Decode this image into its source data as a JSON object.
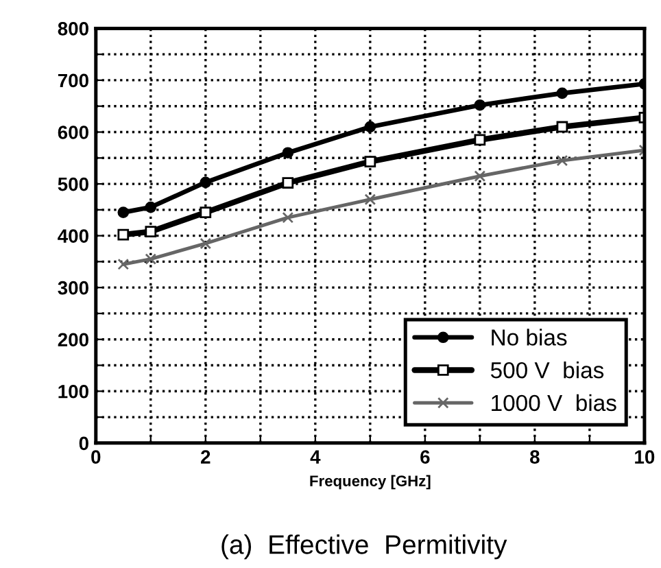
{
  "chart_data": {
    "type": "line",
    "title": "(a)  Effective  Permitivity",
    "xlabel": "Frequency [GHz]",
    "xlim": [
      0,
      10
    ],
    "ylim": [
      0,
      800
    ],
    "xticks": [
      0,
      {
        "value": 1,
        "label": null
      },
      2,
      {
        "value": 3,
        "label": null
      },
      4,
      {
        "value": 5,
        "label": null
      },
      6,
      {
        "value": 7,
        "label": null
      },
      8,
      {
        "value": 9,
        "label": null
      },
      10
    ],
    "yticks": [
      0,
      {
        "value": 50,
        "label": null
      },
      100,
      {
        "value": 150,
        "label": null
      },
      200,
      {
        "value": 250,
        "label": null
      },
      300,
      {
        "value": 350,
        "label": null
      },
      400,
      {
        "value": 450,
        "label": null
      },
      500,
      {
        "value": 550,
        "label": null
      },
      600,
      {
        "value": 650,
        "label": null
      },
      700,
      {
        "value": 750,
        "label": null
      },
      800
    ],
    "grid": true,
    "legend": "bottom right",
    "line_style": "solid",
    "series": [
      {
        "name": "No bias",
        "color": "#000000",
        "marker": "circle",
        "x": [
          0.5,
          1,
          2,
          3.5,
          5,
          7,
          8.5,
          10
        ],
        "values": [
          445,
          455,
          503,
          560,
          610,
          652,
          675,
          693
        ]
      },
      {
        "name": "500 V  bias",
        "color": "#000000",
        "marker": "square",
        "x": [
          0.5,
          1,
          2,
          3.5,
          5,
          7,
          8.5,
          10
        ],
        "values": [
          402,
          408,
          445,
          502,
          543,
          585,
          610,
          628
        ]
      },
      {
        "name": "1000 V  bias",
        "color": "#666666",
        "marker": "cross",
        "x": [
          0.5,
          1,
          2,
          3.5,
          5,
          7,
          8.5,
          10
        ],
        "values": [
          345,
          355,
          385,
          435,
          470,
          515,
          545,
          565
        ]
      }
    ]
  }
}
